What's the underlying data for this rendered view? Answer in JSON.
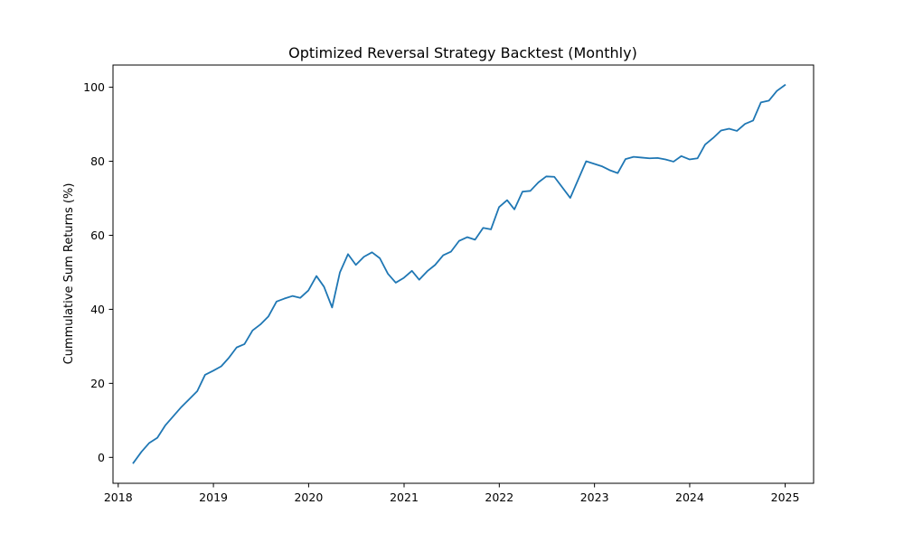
{
  "chart_data": {
    "type": "line",
    "title": "Optimized Reversal Strategy Backtest (Monthly)",
    "xlabel": "",
    "ylabel": "Cummulative Sum Returns (%)",
    "xlim": [
      "2017-12-12",
      "2025-04-20"
    ],
    "ylim": [
      -7,
      106
    ],
    "x_ticks": [
      "2018-01-01",
      "2019-01-01",
      "2020-01-01",
      "2021-01-01",
      "2022-01-01",
      "2023-01-01",
      "2024-01-01",
      "2025-01-01"
    ],
    "x_tick_labels": [
      "2018",
      "2019",
      "2020",
      "2021",
      "2022",
      "2023",
      "2024",
      "2025"
    ],
    "y_ticks": [
      0,
      20,
      40,
      60,
      80,
      100
    ],
    "y_tick_labels": [
      "0",
      "20",
      "40",
      "60",
      "80",
      "100"
    ],
    "grid": false,
    "line_color": "#1f77b4",
    "series": [
      {
        "x": [
          "2018-02-28",
          "2018-03-31",
          "2018-04-30",
          "2018-05-31",
          "2018-06-30",
          "2018-07-31",
          "2018-08-31",
          "2018-09-30",
          "2018-10-31",
          "2018-11-30",
          "2018-12-31",
          "2019-01-31",
          "2019-02-28",
          "2019-03-31",
          "2019-04-30",
          "2019-05-31",
          "2019-06-30",
          "2019-07-31",
          "2019-08-31",
          "2019-09-30",
          "2019-10-31",
          "2019-11-30",
          "2019-12-31",
          "2020-01-31",
          "2020-02-29",
          "2020-03-31",
          "2020-04-30",
          "2020-05-31",
          "2020-06-30",
          "2020-07-31",
          "2020-08-31",
          "2020-09-30",
          "2020-10-31",
          "2020-11-30",
          "2020-12-31",
          "2021-01-31",
          "2021-02-28",
          "2021-03-31",
          "2021-04-30",
          "2021-05-31",
          "2021-06-30",
          "2021-07-31",
          "2021-08-31",
          "2021-09-30",
          "2021-10-31",
          "2021-11-30",
          "2021-12-31",
          "2022-01-31",
          "2022-02-28",
          "2022-03-31",
          "2022-04-30",
          "2022-05-31",
          "2022-06-30",
          "2022-07-31",
          "2022-09-30",
          "2022-11-30",
          "2023-01-31",
          "2023-02-28",
          "2023-03-31",
          "2023-04-30",
          "2023-05-31",
          "2023-06-30",
          "2023-07-31",
          "2023-08-31",
          "2023-09-30",
          "2023-10-31",
          "2023-11-30",
          "2023-12-31",
          "2024-01-31",
          "2024-02-29",
          "2024-03-31",
          "2024-04-30",
          "2024-05-31",
          "2024-06-30",
          "2024-07-31",
          "2024-08-31",
          "2024-09-30",
          "2024-10-31",
          "2024-11-30",
          "2024-12-31"
        ],
        "y": [
          -1.5,
          1.5,
          3.9,
          5.3,
          8.6,
          11.1,
          13.6,
          15.7,
          17.9,
          22.3,
          23.4,
          24.6,
          26.8,
          29.7,
          30.6,
          34.3,
          35.9,
          38.1,
          42.1,
          42.9,
          43.6,
          43.1,
          45.1,
          49.0,
          46.1,
          40.5,
          50.0,
          54.9,
          52.0,
          54.2,
          55.4,
          53.8,
          49.6,
          47.2,
          48.5,
          50.4,
          48.0,
          50.3,
          52.0,
          54.6,
          55.6,
          58.5,
          59.5,
          58.8,
          62.0,
          61.6,
          67.6,
          69.5,
          67.0,
          71.8,
          72.0,
          74.3,
          75.9,
          75.8,
          70.1,
          80.0,
          78.6,
          77.6,
          76.8,
          80.6,
          81.2,
          81.0,
          80.8,
          80.9,
          80.5,
          79.9,
          81.4,
          80.5,
          80.8,
          84.5,
          86.3,
          88.3,
          88.8,
          88.2,
          90.1,
          91.0,
          95.9,
          96.4,
          99.0,
          100.6
        ]
      }
    ]
  }
}
